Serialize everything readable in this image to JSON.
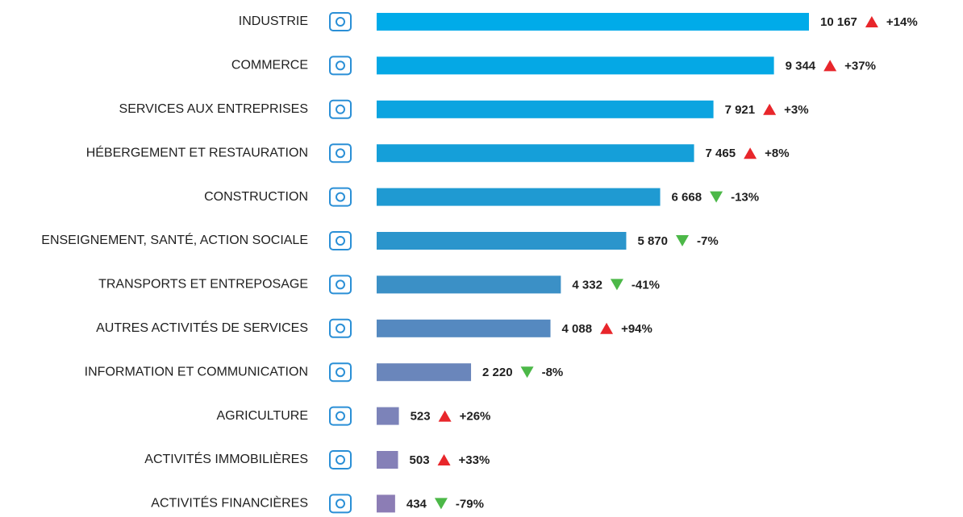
{
  "chart_data": {
    "type": "bar",
    "orientation": "horizontal",
    "categories": [
      "INDUSTRIE",
      "COMMERCE",
      "SERVICES AUX ENTREPRISES",
      "HÉBERGEMENT ET RESTAURATION",
      "CONSTRUCTION",
      "ENSEIGNEMENT, SANTÉ, ACTION SOCIALE",
      "TRANSPORTS ET ENTREPOSAGE",
      "AUTRES ACTIVITÉS DE SERVICES",
      "INFORMATION ET COMMUNICATION",
      "AGRICULTURE",
      "ACTIVITÉS IMMOBILIÈRES",
      "ACTIVITÉS FINANCIÈRES"
    ],
    "values": [
      10167,
      9344,
      7921,
      7465,
      6668,
      5870,
      4332,
      4088,
      2220,
      523,
      503,
      434
    ],
    "value_labels": [
      "10 167",
      "9 344",
      "7 921",
      "7 465",
      "6 668",
      "5 870",
      "4 332",
      "4 088",
      "2 220",
      "523",
      "503",
      "434"
    ],
    "changes": [
      14,
      37,
      3,
      8,
      -13,
      -7,
      -41,
      94,
      -8,
      26,
      33,
      -79
    ],
    "change_labels": [
      "+14%",
      "+37%",
      "+3%",
      "+8%",
      "-13%",
      "-7%",
      "-41%",
      "+94%",
      "-8%",
      "+26%",
      "+33%",
      "-79%"
    ],
    "colors": [
      "#00abe9",
      "#05a8e5",
      "#0ca4e0",
      "#159fd9",
      "#1f9ad2",
      "#2b95cc",
      "#3b90c6",
      "#5589c0",
      "#6a86bb",
      "#7c83b9",
      "#8580b7",
      "#8c7db5"
    ],
    "up_color": "#e8262b",
    "down_color": "#4cb848"
  }
}
